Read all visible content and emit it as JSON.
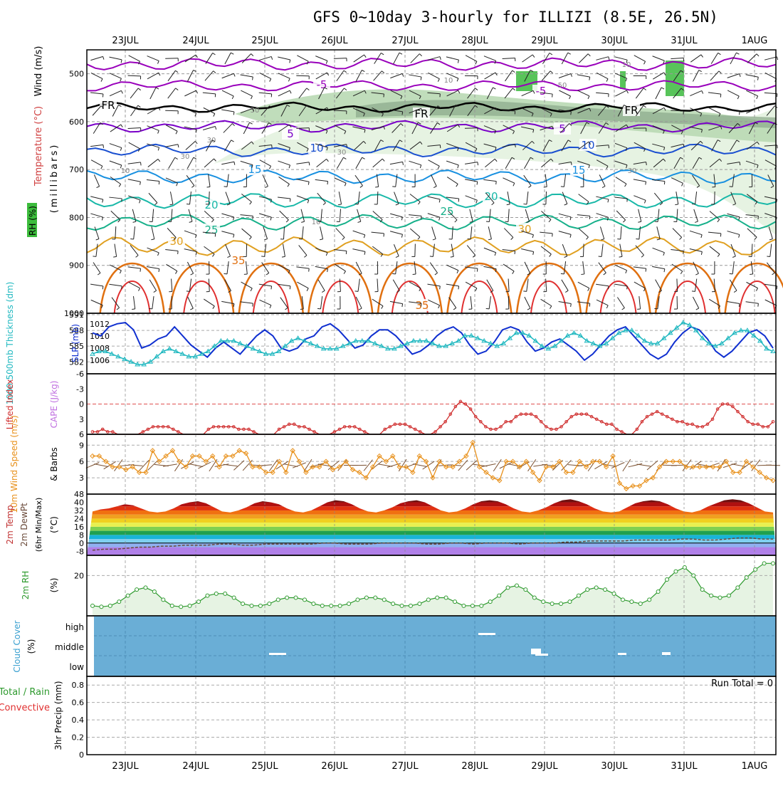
{
  "header": {
    "title": "GFS 0~10day 3-hourly for ILLIZI (8.5E, 26.5N)"
  },
  "chart_data": [
    {
      "type": "line",
      "panel": "upper-air",
      "ylabels": [
        "Wind (m/s)",
        "Temperature (°C)",
        "RH (%)",
        "(millibars)"
      ],
      "dates": [
        "23JUL",
        "24JUL",
        "25JUL",
        "26JUL",
        "27JUL",
        "28JUL",
        "29JUL",
        "30JUL",
        "31JUL",
        "1AUG"
      ],
      "yticks": [
        500,
        600,
        700,
        800,
        900,
        1000
      ],
      "ylim": [
        1000,
        450
      ],
      "contour_labels": [
        "-5",
        "FR",
        "5",
        "10",
        "15",
        "20",
        "25",
        "30",
        "35"
      ],
      "rh_labels": [
        "10",
        "30",
        "50",
        "70"
      ],
      "colors": {
        "temp_neg": "#9900bb",
        "fr": "#000000",
        "temp_5": "#7a00c8",
        "temp_10": "#1a4fd0",
        "temp_15": "#1890e0",
        "temp_20": "#18b8a8",
        "temp_25": "#16b08a",
        "temp_30": "#e0a020",
        "temp_35": "#e07010",
        "temp_40": "#e03030",
        "rh": "#5ac85a"
      }
    },
    {
      "type": "line",
      "panel": "thickness-slp",
      "ylabels": [
        "1000-500mb Thickness (dm)",
        "SLP (mb)"
      ],
      "yticks_left": [
        582,
        585,
        588,
        591
      ],
      "yticks_right": [
        1006,
        1008,
        1010,
        1012
      ],
      "series": [
        {
          "name": "SLP (mb)",
          "color": "#1030d0",
          "values": [
            1010.5,
            1010,
            1011.5,
            1012,
            1012.2,
            1011,
            1008,
            1008.5,
            1009.5,
            1010,
            1011.5,
            1010,
            1008.5,
            1007.5,
            1006.5,
            1008,
            1009,
            1008,
            1007,
            1008.5,
            1010,
            1011,
            1010,
            1008,
            1007.5,
            1008,
            1009.5,
            1010,
            1011.5,
            1012,
            1011,
            1009.5,
            1008,
            1008.5,
            1010,
            1011,
            1011,
            1010,
            1008.5,
            1007,
            1007.5,
            1008.5,
            1010,
            1011,
            1011.5,
            1010.5,
            1008.5,
            1007,
            1007.5,
            1009,
            1011,
            1011.5,
            1011,
            1009,
            1007.5,
            1008,
            1009,
            1009.5,
            1008.5,
            1007.5,
            1006,
            1007,
            1008.5,
            1010,
            1011,
            1011.5,
            1010,
            1008.5,
            1007,
            1006.2,
            1007,
            1009,
            1010.5,
            1011.5,
            1011,
            1009.5,
            1007.5,
            1006.5,
            1007.5,
            1009,
            1010.5,
            1011,
            1010,
            1008
          ]
        },
        {
          "name": "Thickness (dm)",
          "color": "#20b8c0",
          "values": [
            583.5,
            584,
            584,
            583.5,
            583,
            582.5,
            582,
            581.5,
            581.5,
            582,
            583,
            584,
            584.5,
            584,
            583.5,
            583,
            583,
            583.5,
            584,
            585,
            586,
            586,
            586,
            585.5,
            585,
            584.5,
            584,
            583.5,
            583.5,
            584,
            585,
            586,
            586.5,
            586,
            585.5,
            585,
            584.5,
            584.5,
            584.5,
            585,
            585.5,
            586,
            586,
            586,
            585.5,
            585,
            584.5,
            584.5,
            585,
            585.5,
            586,
            586,
            586,
            585.5,
            585,
            585,
            585.5,
            586,
            587,
            587,
            586.5,
            586,
            585.5,
            585,
            585.5,
            586.5,
            587.5,
            587.5,
            587,
            586,
            585,
            584.5,
            585,
            586,
            587,
            587.5,
            587,
            586,
            585.5,
            585,
            585.5,
            586.5,
            587.5,
            588,
            588,
            587,
            586,
            585.5,
            585.5,
            586.5,
            587.5,
            588.5,
            589.5,
            589,
            588,
            586.5,
            585.5,
            585,
            585.5,
            586.5,
            587.5,
            588,
            588,
            587,
            586,
            584.5,
            584
          ]
        }
      ]
    },
    {
      "type": "line",
      "panel": "cape-li",
      "ylabels": [
        "Lifted Index",
        "CAPE (J/kg)"
      ],
      "yticks": [
        -6,
        -3,
        0,
        3,
        6
      ],
      "series": [
        {
          "name": "Lifted Index",
          "color": "#d03030",
          "values": [
            5.5,
            5.5,
            5,
            5.5,
            5.5,
            6,
            6,
            6,
            6,
            6,
            5.5,
            5,
            4.5,
            4.5,
            4.5,
            4.5,
            5,
            5.5,
            6,
            6,
            6,
            6,
            6,
            5,
            4.5,
            4.5,
            4.5,
            4.5,
            4.5,
            5,
            5,
            5,
            5.5,
            6,
            6,
            6,
            6,
            5,
            4.5,
            4,
            4,
            4.5,
            4.5,
            5,
            5.5,
            6,
            6,
            6,
            5.5,
            5,
            4.5,
            4.5,
            4.5,
            5,
            5.5,
            6,
            6,
            6,
            5,
            4.5,
            4,
            4,
            4,
            4.5,
            5,
            5.5,
            6,
            6,
            5.5,
            4.5,
            3.5,
            2,
            0.5,
            -0.5,
            0,
            1,
            2.5,
            3.5,
            4.5,
            5,
            5,
            4.5,
            3.5,
            3.5,
            2.5,
            2,
            2,
            2,
            2.5,
            3.5,
            4.5,
            5,
            5,
            4.5,
            3.5,
            2.5,
            2,
            2,
            2,
            2.5,
            3,
            3.5,
            4,
            4,
            5,
            5.5,
            6,
            6,
            5,
            3.5,
            2.5,
            2,
            1.5,
            2,
            2.5,
            3,
            3.5,
            3.5,
            4,
            4,
            4.5,
            4.5,
            4,
            3,
            1,
            0,
            0,
            0.5,
            1.5,
            2.5,
            3.5,
            4,
            4,
            4.5,
            4.5,
            3.5
          ]
        }
      ]
    },
    {
      "type": "line",
      "panel": "wind10m",
      "ylabels": [
        "10m Wind Speed (m/s)",
        "& Barbs"
      ],
      "yticks": [
        3,
        6,
        9
      ],
      "series": [
        {
          "name": "10m Wind Speed",
          "color": "#e8901a",
          "values": [
            7,
            7,
            6,
            5,
            5,
            4.5,
            5,
            4,
            4,
            8,
            6,
            7,
            8,
            6,
            5,
            7,
            7,
            6,
            7,
            5,
            7,
            7,
            8,
            7.5,
            5,
            5,
            4,
            4,
            6,
            4,
            8,
            6,
            4,
            5,
            5,
            6,
            4.5,
            5,
            6,
            4.5,
            4,
            3,
            5,
            7,
            6,
            7,
            5,
            5,
            4,
            7,
            6,
            3,
            6,
            5,
            5,
            6,
            7,
            9.5,
            5,
            4,
            3,
            2.5,
            6,
            6,
            5,
            6,
            4,
            2.5,
            5,
            5,
            6,
            4,
            4,
            6,
            5,
            6,
            6,
            5,
            7,
            2,
            1,
            1.5,
            1.5,
            2.5,
            3,
            5,
            6,
            6,
            6,
            5,
            5,
            5,
            5,
            5,
            5,
            6,
            4,
            4,
            6,
            5,
            4,
            3,
            2.5
          ]
        }
      ]
    },
    {
      "type": "area",
      "panel": "temp2m",
      "ylabels": [
        "2m Temp",
        "2m DewPt",
        "(6hr Min/Max)",
        "(°C)"
      ],
      "yticks": [
        -8,
        0,
        8,
        16,
        24,
        32,
        40,
        48
      ],
      "series": [
        {
          "name": "2m Temp",
          "values": [
            31,
            33,
            34,
            36,
            38,
            37,
            34,
            31,
            30,
            31,
            34,
            38,
            40,
            41,
            39,
            35,
            31,
            30,
            32,
            35,
            39,
            41,
            40,
            38,
            34,
            31,
            30,
            32,
            36,
            40,
            42,
            41,
            38,
            34,
            31,
            30,
            32,
            35,
            39,
            41,
            42,
            40,
            36,
            32,
            30,
            31,
            34,
            38,
            41,
            42,
            41,
            38,
            34,
            31,
            30,
            32,
            35,
            39,
            42,
            43,
            41,
            38,
            34,
            31,
            30,
            31,
            35,
            39,
            41,
            42,
            41,
            38,
            34,
            31,
            30,
            32,
            36,
            39,
            42,
            43,
            42,
            39,
            35,
            31,
            30
          ]
        },
        {
          "name": "2m DewPt",
          "values": [
            -7,
            -6,
            -6,
            -5,
            -4,
            -4,
            -3,
            -3,
            -2,
            -2,
            -2,
            -1,
            -1,
            -2,
            -2,
            -1,
            -1,
            -1,
            -1,
            -1,
            0,
            0,
            -1,
            -1,
            -1,
            0,
            0,
            0,
            0,
            -1,
            -1,
            0,
            0,
            -1,
            0,
            0,
            0,
            -1,
            0,
            0,
            0,
            1,
            1,
            2,
            2,
            2,
            2,
            3,
            3,
            3,
            3,
            4,
            4,
            3,
            3,
            4,
            5,
            5,
            4,
            4
          ]
        }
      ]
    },
    {
      "type": "area",
      "panel": "rh2m",
      "ylabels": [
        "2m RH",
        "(%)"
      ],
      "yticks": [
        20
      ],
      "series": [
        {
          "name": "2m RH",
          "color": "#2e9a2e",
          "values": [
            5,
            4.5,
            5,
            7,
            10,
            13,
            14,
            12,
            8,
            5,
            4.5,
            5,
            7,
            10,
            11,
            11,
            9,
            6,
            5,
            5,
            6,
            8,
            9,
            9,
            8,
            6,
            5,
            5,
            5,
            6,
            8,
            9,
            9,
            8,
            6,
            5,
            5,
            6,
            8,
            9,
            9,
            7,
            5,
            5,
            5,
            7,
            10,
            14,
            15,
            13,
            9,
            7,
            6,
            6,
            7,
            10,
            13,
            14,
            13,
            11,
            8,
            7,
            6,
            8,
            12,
            18,
            22,
            24,
            20,
            13,
            10,
            9,
            10,
            14,
            19,
            23,
            26,
            26
          ]
        }
      ]
    },
    {
      "type": "heatmap",
      "panel": "cloud-cover",
      "ylabels": [
        "Cloud Cover",
        "(%)"
      ],
      "yticklabels": [
        "high",
        "middle",
        "low"
      ],
      "series": [
        {
          "name": "high",
          "values": [
            0,
            0,
            0,
            0,
            0,
            0,
            0,
            0,
            0,
            0,
            0,
            0,
            0,
            0,
            0,
            0,
            0,
            0,
            0,
            0,
            0,
            0,
            0,
            0,
            0,
            0,
            0,
            0,
            0,
            0,
            0,
            0,
            0,
            0,
            0,
            0,
            0,
            0,
            0,
            0,
            0,
            0,
            0,
            0,
            0,
            0,
            0,
            0,
            0,
            0,
            0,
            0,
            0,
            0,
            0,
            0,
            0,
            0,
            0,
            0,
            0,
            0,
            0,
            0,
            0,
            0,
            0,
            0,
            0,
            0,
            0,
            0,
            0,
            0,
            0,
            0,
            0,
            0,
            0,
            0,
            0
          ]
        },
        {
          "name": "middle",
          "values": [
            0,
            0,
            0,
            0,
            0,
            0,
            0,
            0,
            0,
            0,
            0,
            0,
            0,
            0,
            0,
            0,
            0,
            0,
            0,
            0,
            0,
            0,
            0,
            0,
            0,
            0,
            0,
            0,
            0,
            0,
            0,
            0,
            0,
            0,
            0,
            0,
            0,
            0,
            0,
            0,
            0,
            0,
            0,
            0,
            0,
            0,
            0,
            0,
            0,
            0,
            0,
            0,
            0,
            0,
            0,
            0,
            0,
            0,
            0,
            0,
            0,
            0,
            0,
            0,
            0,
            0,
            0,
            0,
            0,
            0,
            0,
            0,
            0,
            0,
            0,
            0,
            0,
            0,
            0,
            0,
            0
          ]
        }
      ]
    },
    {
      "type": "bar",
      "panel": "precip",
      "ylabels": [
        "3hr Precip (mm)"
      ],
      "series_labels": [
        "Total / Rain",
        "Convective"
      ],
      "yticks": [
        0,
        0.2,
        0.4,
        0.6,
        0.8
      ],
      "ylim": [
        0,
        0.9
      ],
      "run_total": "Run Total = 0",
      "values": []
    }
  ]
}
